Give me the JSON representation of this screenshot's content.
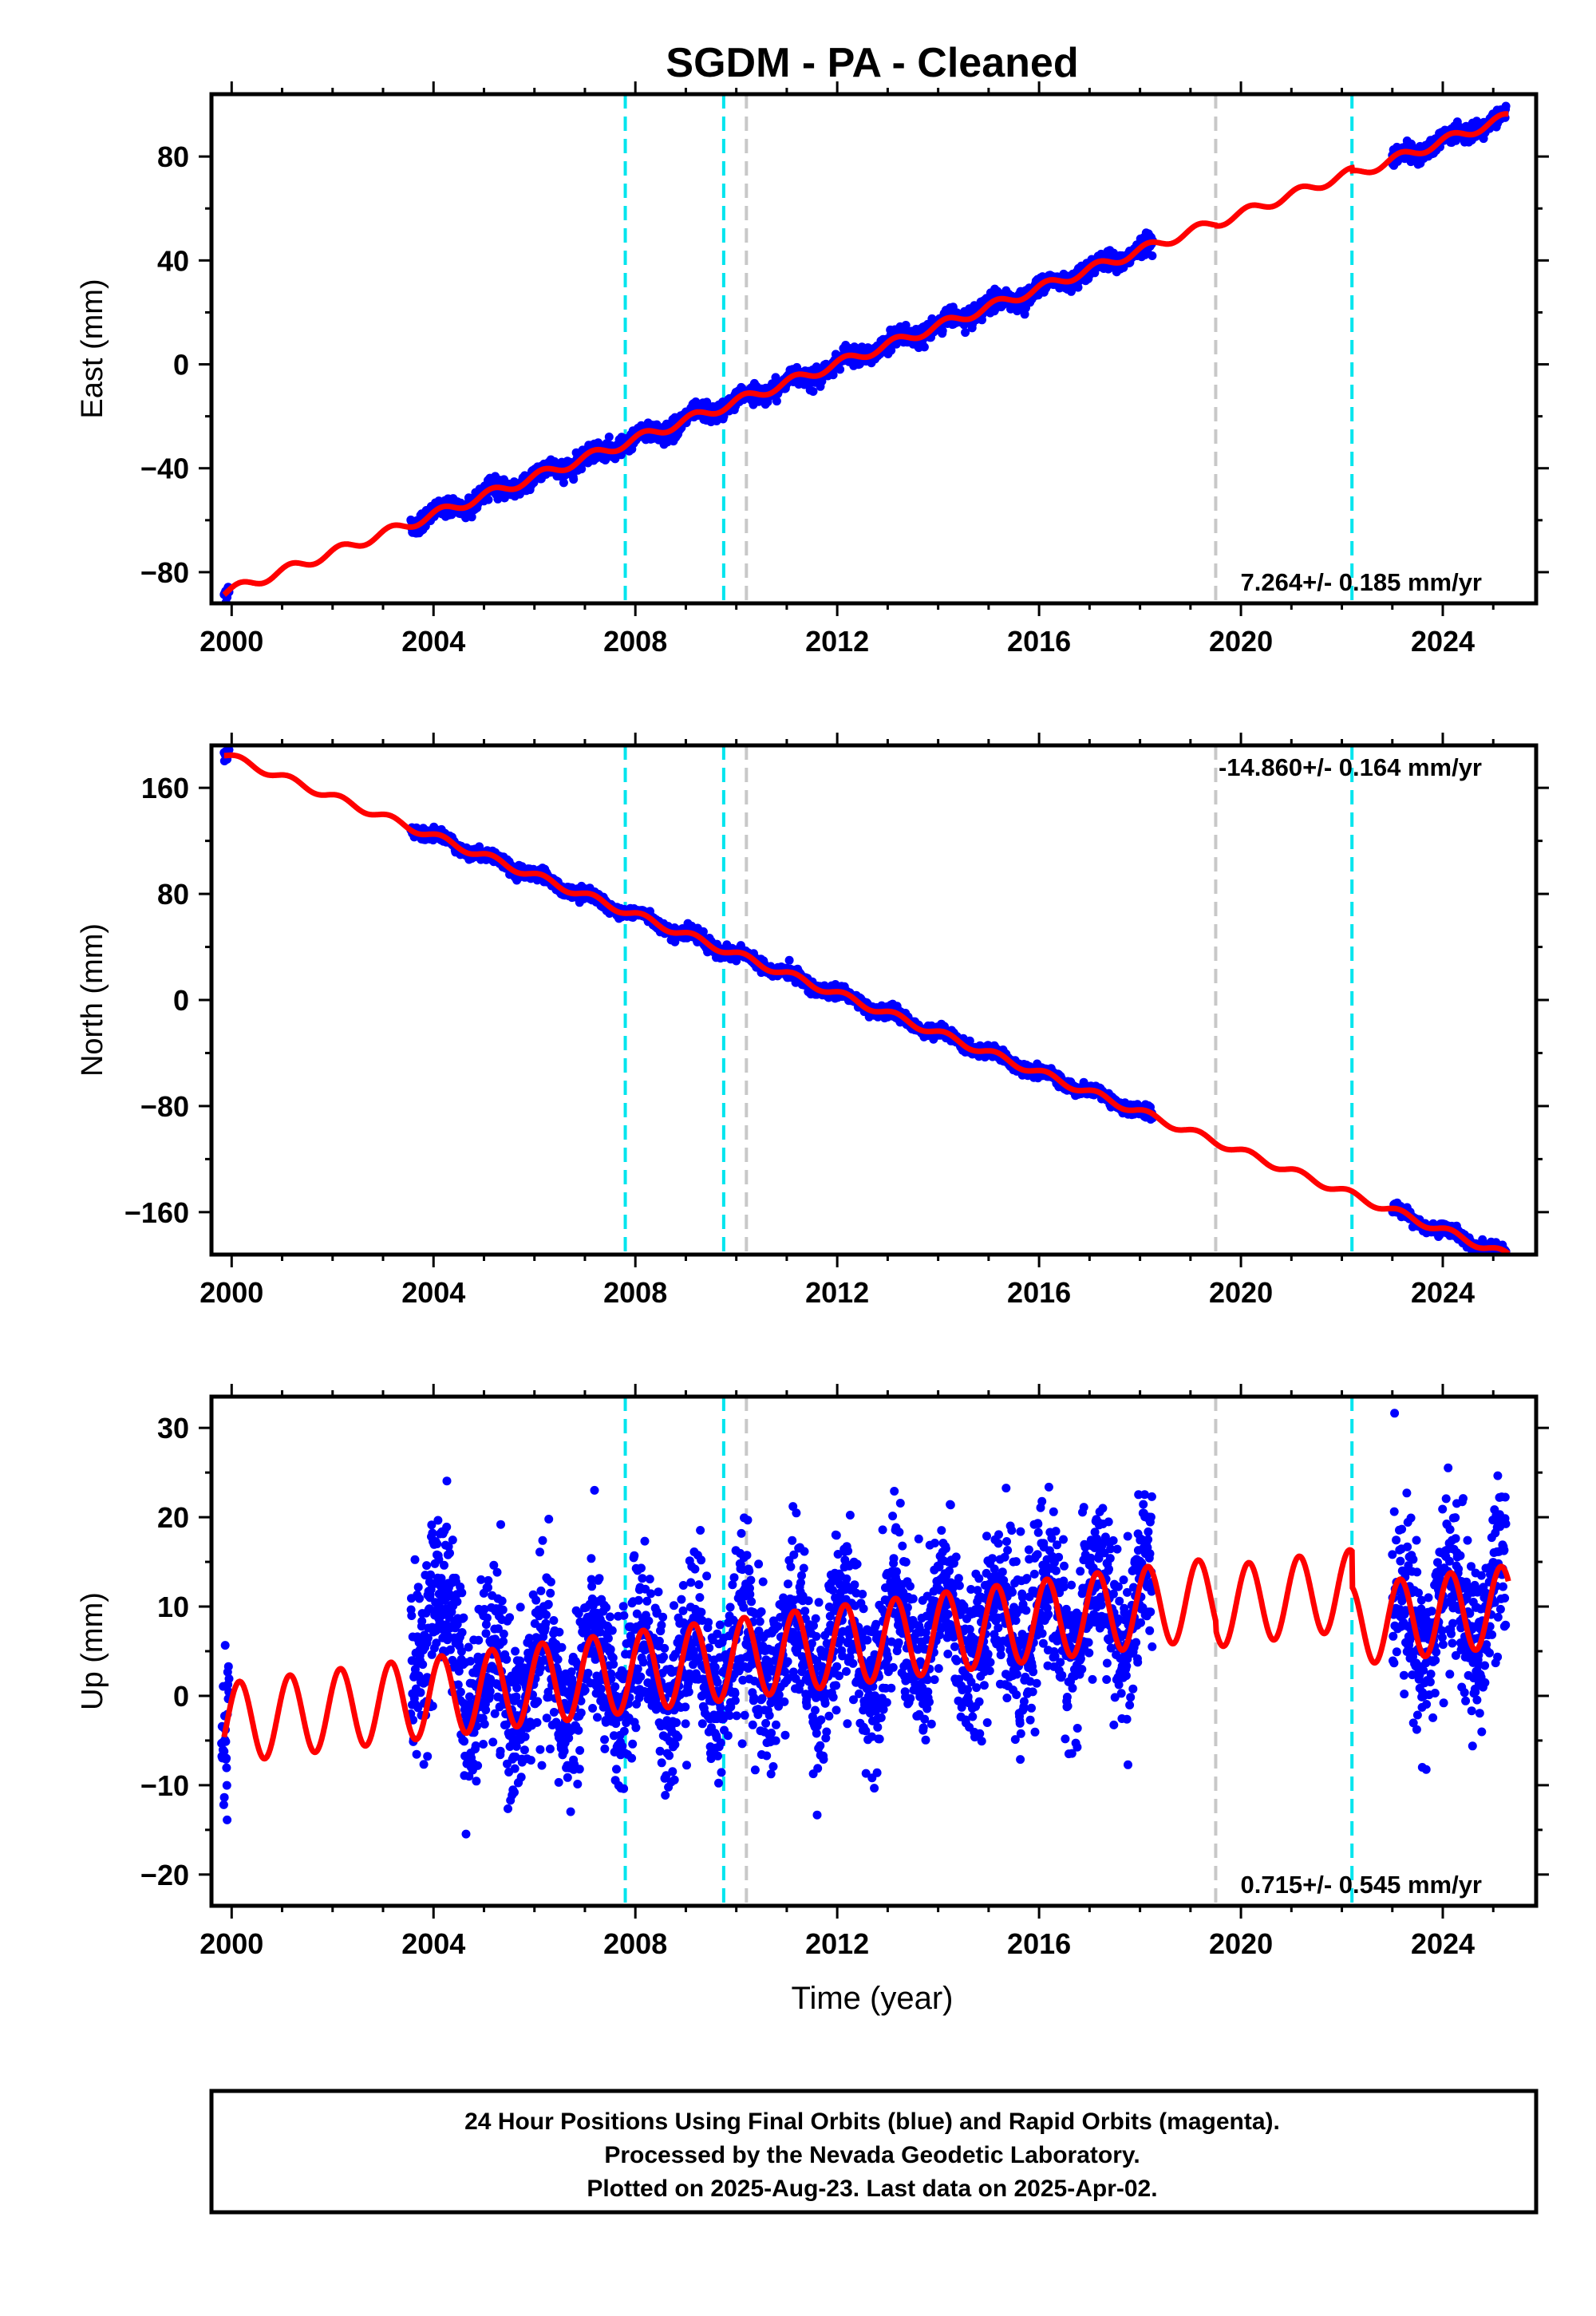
{
  "title": "SGDM  - PA - Cleaned",
  "x_label": "Time (year)",
  "footer": {
    "line1": "24 Hour Positions Using Final Orbits (blue) and Rapid Orbits (magenta).",
    "line2": "Processed by the Nevada Geodetic Laboratory.",
    "line3": "Plotted on 2025-Aug-23. Last data on 2025-Apr-02."
  },
  "colors": {
    "data": "#0000ff",
    "model": "#ff0000",
    "cyan_line": "#00e5ee",
    "gray_line": "#c8c8c8"
  },
  "chart_data": [
    {
      "type": "scatter",
      "name": "East",
      "ylabel": "East (mm)",
      "xlim": [
        1999.6,
        2025.85
      ],
      "ylim": [
        -92,
        104
      ],
      "yticks": [
        -80,
        -40,
        0,
        40,
        80
      ],
      "xticks": [
        2000,
        2004,
        2008,
        2012,
        2016,
        2020,
        2024
      ],
      "rate_text": "7.264+/- 0.185 mm/yr",
      "rate_position": "bottom-right",
      "rate_mm_per_yr": 7.264,
      "model_intercept_2000": -87,
      "offset_2022_6": -1.5,
      "seasonal_amplitude": 1.8,
      "noise_mm": 1.6,
      "data_segments": [
        [
          1999.85,
          1999.95
        ],
        [
          2003.55,
          2018.25
        ],
        [
          2023.0,
          2025.25
        ]
      ],
      "cyan_lines": [
        2007.8,
        2009.75
      ],
      "gray_lines": [
        2010.2,
        2019.5
      ],
      "cyan_lines_2": [
        2022.2
      ]
    },
    {
      "type": "scatter",
      "name": "North",
      "ylabel": "North (mm)",
      "xlim": [
        1999.6,
        2025.85
      ],
      "ylim": [
        -192,
        192
      ],
      "yticks": [
        -160,
        -80,
        0,
        80,
        160
      ],
      "xticks": [
        2000,
        2004,
        2008,
        2012,
        2016,
        2020,
        2024
      ],
      "rate_text": "-14.860+/- 0.164 mm/yr",
      "rate_position": "top-right",
      "rate_mm_per_yr": -14.86,
      "model_intercept_2000": 183,
      "offset_2022_6": 0,
      "seasonal_amplitude": 2.8,
      "noise_mm": 2.2,
      "data_segments": [
        [
          1999.85,
          1999.95
        ],
        [
          2003.55,
          2018.25
        ],
        [
          2023.0,
          2025.25
        ]
      ],
      "cyan_lines": [
        2007.8,
        2009.75
      ],
      "gray_lines": [
        2010.2,
        2019.5
      ],
      "cyan_lines_2": [
        2022.2
      ]
    },
    {
      "type": "scatter",
      "name": "Up",
      "ylabel": "Up (mm)",
      "xlim": [
        1999.6,
        2025.85
      ],
      "ylim": [
        -23.5,
        33.5
      ],
      "yticks": [
        -20,
        -10,
        0,
        10,
        20,
        30
      ],
      "xticks": [
        2000,
        2004,
        2008,
        2012,
        2016,
        2020,
        2024
      ],
      "rate_text": "0.715+/- 0.545 mm/yr",
      "rate_position": "bottom-right",
      "rate_mm_per_yr": 0.715,
      "model_intercept_2000": -3,
      "offset_2022_6": -5,
      "seasonal_amplitude": 4.5,
      "noise_mm": 4.6,
      "data_segments": [
        [
          1999.8,
          1999.95
        ],
        [
          2003.55,
          2018.25
        ],
        [
          2023.0,
          2025.25
        ]
      ],
      "cyan_lines": [
        2007.8,
        2009.75
      ],
      "gray_lines": [
        2010.2,
        2019.5
      ],
      "cyan_lines_2": [
        2022.2
      ]
    }
  ]
}
